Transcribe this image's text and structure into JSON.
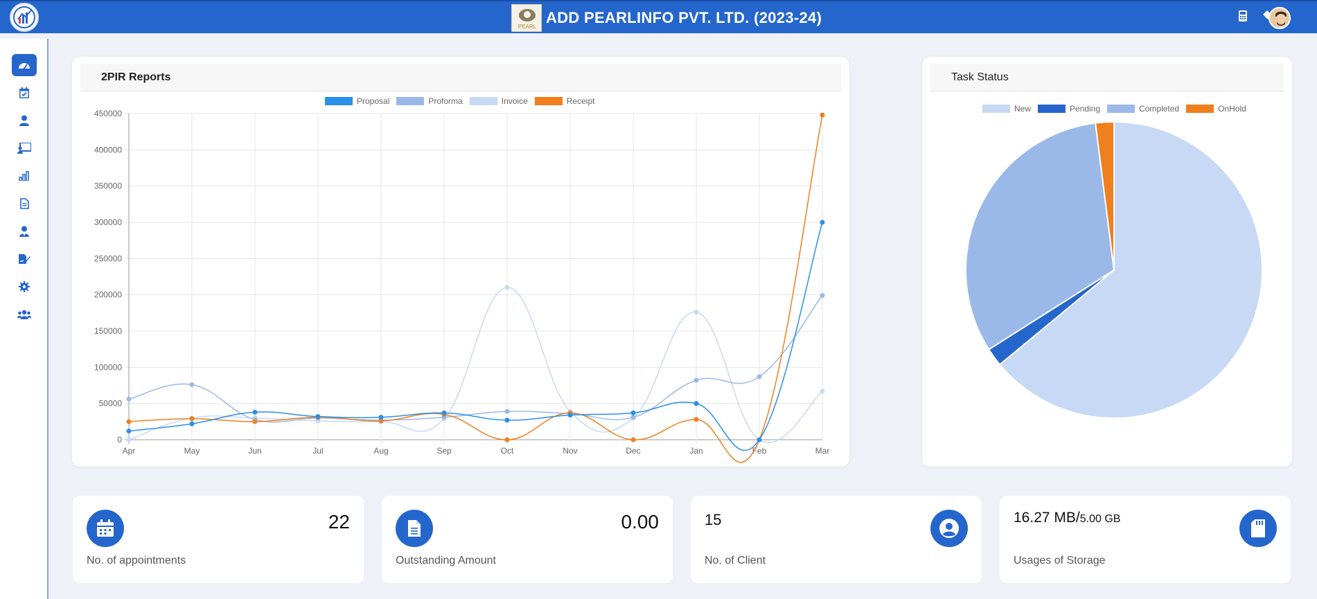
{
  "header": {
    "title": "ADD PEARLINFO PVT. LTD. (2023-24)",
    "brand_logo_text": "PEARL",
    "icons": [
      "calculator-icon",
      "paint-bucket-icon"
    ],
    "bg_color": "#2566cc"
  },
  "sidebar": {
    "items": [
      {
        "name": "dashboard",
        "icon": "speedometer-icon",
        "active": true
      },
      {
        "name": "tasks",
        "icon": "calendar-check-icon"
      },
      {
        "name": "clients",
        "icon": "user-icon"
      },
      {
        "name": "presentation",
        "icon": "chalkboard-icon"
      },
      {
        "name": "reports",
        "icon": "bar-chart-icon"
      },
      {
        "name": "documents",
        "icon": "file-icon"
      },
      {
        "name": "employees",
        "icon": "user-tie-icon"
      },
      {
        "name": "signature",
        "icon": "file-signature-icon"
      },
      {
        "name": "settings",
        "icon": "gear-icon"
      },
      {
        "name": "users",
        "icon": "users-icon"
      }
    ]
  },
  "reports": {
    "title": "2PIR Reports",
    "chart_data": {
      "type": "line",
      "categories": [
        "Apr",
        "May",
        "Jun",
        "Jul",
        "Aug",
        "Sep",
        "Oct",
        "Nov",
        "Dec",
        "Jan",
        "Feb",
        "Mar"
      ],
      "ylim": [
        0,
        450000
      ],
      "yticks": [
        "0",
        "50000",
        "100000",
        "150000",
        "200000",
        "250000",
        "300000",
        "350000",
        "400000",
        "450000"
      ],
      "legend_position": "top",
      "grid": true,
      "series": [
        {
          "name": "Proposal",
          "color": "#2a8fe8",
          "values": [
            12000,
            22000,
            38000,
            32000,
            31000,
            37000,
            27000,
            34000,
            37000,
            50000,
            0,
            300000
          ]
        },
        {
          "name": "Proforma",
          "color": "#9bb9e8",
          "values": [
            56000,
            76000,
            28000,
            30000,
            27000,
            31000,
            39000,
            36000,
            31000,
            82000,
            87000,
            199000
          ]
        },
        {
          "name": "Invoice",
          "color": "#c7d9f4",
          "values": [
            0,
            30000,
            30000,
            26000,
            25000,
            29000,
            210000,
            39000,
            30000,
            176000,
            0,
            67000
          ]
        },
        {
          "name": "Receipt",
          "color": "#f07f1e",
          "values": [
            25000,
            29000,
            25000,
            31000,
            26000,
            35000,
            0,
            37000,
            0,
            28000,
            0,
            448000
          ]
        }
      ]
    }
  },
  "task_status": {
    "title": "Task Status",
    "chart_data": {
      "type": "pie",
      "legend_position": "top",
      "labels": [
        "New",
        "Pending",
        "Completed",
        "OnHold"
      ],
      "colors": [
        "#c7d9f4",
        "#2566cc",
        "#9bb9e8",
        "#f07f1e"
      ],
      "values": [
        64,
        2,
        32,
        2
      ]
    }
  },
  "stats": {
    "appointments": {
      "value": "22",
      "label": "No. of appointments",
      "icon": "calendar-icon"
    },
    "outstanding": {
      "value": "0.00",
      "label": "Outstanding Amount",
      "icon": "document-icon"
    },
    "clients": {
      "value": "15",
      "label": "No. of Client",
      "icon": "user-circle-icon"
    },
    "storage": {
      "used": "16.27 MB/",
      "total": "5.00 GB",
      "label": "Usages of Storage",
      "icon": "sd-card-icon"
    }
  }
}
